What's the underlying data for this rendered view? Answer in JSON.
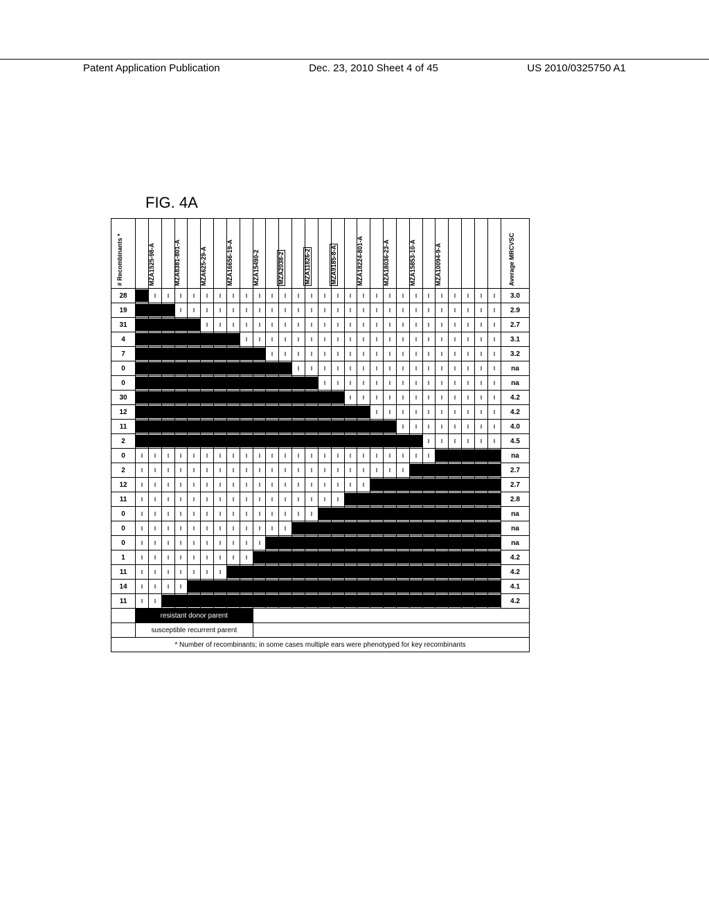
{
  "header": {
    "left": "Patent Application Publication",
    "center": "Dec. 23, 2010  Sheet 4 of 45",
    "right": "US 2010/0325750 A1"
  },
  "figure_label": "FIG. 4A",
  "column_left_header": "# Recombinants *",
  "column_right_header": "Average MRCVSC",
  "markers": [
    {
      "label": "MZA1525-98-A",
      "boxed": false,
      "col": 1
    },
    {
      "label": "MZA8381-801-A",
      "boxed": false,
      "col": 3
    },
    {
      "label": "MZA625-29-A",
      "boxed": false,
      "col": 5
    },
    {
      "label": "MZA16656-19-A",
      "boxed": false,
      "col": 7
    },
    {
      "label": "MZA15490-2",
      "boxed": false,
      "col": 9
    },
    {
      "label": "MZA2038-2",
      "boxed": true,
      "col": 11
    },
    {
      "label": "MZA11826-2",
      "boxed": true,
      "col": 13
    },
    {
      "label": "MZA9185-8-A",
      "boxed": true,
      "col": 15
    },
    {
      "label": "MZA18224-801-A",
      "boxed": false,
      "col": 17
    },
    {
      "label": "MZA18036-23-A",
      "boxed": false,
      "col": 19
    },
    {
      "label": "MZA15853-10-A",
      "boxed": false,
      "col": 21
    },
    {
      "label": "MZA10094-9-A",
      "boxed": false,
      "col": 23
    }
  ],
  "total_data_cols": 28,
  "rows": [
    {
      "recomb": "28",
      "avg": "3.0",
      "fill_start": 0,
      "fill_end": 1
    },
    {
      "recomb": "19",
      "avg": "2.9",
      "fill_start": 0,
      "fill_end": 3
    },
    {
      "recomb": "31",
      "avg": "2.7",
      "fill_start": 0,
      "fill_end": 5
    },
    {
      "recomb": "4",
      "avg": "3.1",
      "fill_start": 0,
      "fill_end": 8
    },
    {
      "recomb": "7",
      "avg": "3.2",
      "fill_start": 0,
      "fill_end": 10
    },
    {
      "recomb": "0",
      "avg": "na",
      "fill_start": 0,
      "fill_end": 12
    },
    {
      "recomb": "0",
      "avg": "na",
      "fill_start": 0,
      "fill_end": 14
    },
    {
      "recomb": "30",
      "avg": "4.2",
      "fill_start": 0,
      "fill_end": 16
    },
    {
      "recomb": "12",
      "avg": "4.2",
      "fill_start": 0,
      "fill_end": 18
    },
    {
      "recomb": "11",
      "avg": "4.0",
      "fill_start": 0,
      "fill_end": 20
    },
    {
      "recomb": "2",
      "avg": "4.5",
      "fill_start": 0,
      "fill_end": 22
    },
    {
      "recomb": "0",
      "avg": "na",
      "fill_start": 23,
      "fill_end": 28
    },
    {
      "recomb": "2",
      "avg": "2.7",
      "fill_start": 21,
      "fill_end": 28
    },
    {
      "recomb": "12",
      "avg": "2.7",
      "fill_start": 18,
      "fill_end": 28
    },
    {
      "recomb": "11",
      "avg": "2.8",
      "fill_start": 16,
      "fill_end": 28
    },
    {
      "recomb": "0",
      "avg": "na",
      "fill_start": 14,
      "fill_end": 28
    },
    {
      "recomb": "0",
      "avg": "na",
      "fill_start": 12,
      "fill_end": 28
    },
    {
      "recomb": "0",
      "avg": "na",
      "fill_start": 10,
      "fill_end": 28
    },
    {
      "recomb": "1",
      "avg": "4.2",
      "fill_start": 9,
      "fill_end": 28
    },
    {
      "recomb": "11",
      "avg": "4.2",
      "fill_start": 7,
      "fill_end": 28
    },
    {
      "recomb": "14",
      "avg": "4.1",
      "fill_start": 4,
      "fill_end": 28
    },
    {
      "recomb": "11",
      "avg": "4.2",
      "fill_start": 2,
      "fill_end": 28
    }
  ],
  "legend": {
    "resistant": "resistant donor parent",
    "susceptible": "susceptible recurrent parent"
  },
  "footnote": "* Number of recombinants; in some cases multiple ears were phenotyped for key recombinants"
}
